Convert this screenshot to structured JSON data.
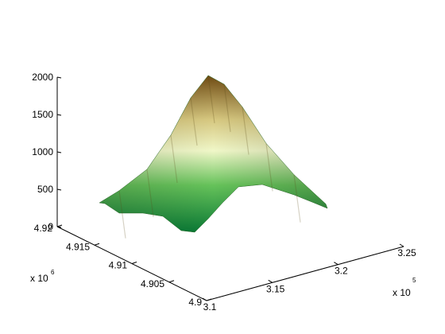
{
  "chart_data": {
    "type": "surface",
    "title": "",
    "xlabel": "",
    "ylabel": "",
    "zlabel": "",
    "x_axis": {
      "range": [
        310000,
        325000
      ],
      "ticks": [
        310000,
        315000,
        320000,
        325000
      ],
      "tick_labels": [
        "3.1",
        "3.15",
        "3.2",
        "3.25"
      ],
      "multiplier_label": "x 10",
      "multiplier_exponent": "5"
    },
    "y_axis": {
      "range": [
        4900000,
        4920000
      ],
      "ticks": [
        4900000,
        4905000,
        4910000,
        4915000,
        4920000
      ],
      "tick_labels": [
        "4.9",
        "4.905",
        "4.91",
        "4.915",
        "4.92"
      ],
      "multiplier_label": "x 10",
      "multiplier_exponent": "6"
    },
    "z_axis": {
      "range": [
        0,
        2000
      ],
      "ticks": [
        0,
        500,
        1000,
        1500,
        2000
      ],
      "tick_labels": [
        "0",
        "500",
        "1000",
        "1500",
        "2000"
      ]
    },
    "grid": false,
    "colormap": [
      "#0a7a35",
      "#66c25a",
      "#f0f7c8",
      "#d6c77f",
      "#6e4a12"
    ],
    "surface_profile": [
      {
        "x": 311000,
        "z_top": 500
      },
      {
        "x": 313000,
        "z_top": 620
      },
      {
        "x": 315000,
        "z_top": 820
      },
      {
        "x": 316500,
        "z_top": 1150
      },
      {
        "x": 317500,
        "z_top": 1500
      },
      {
        "x": 318500,
        "z_top": 1650
      },
      {
        "x": 319500,
        "z_top": 1480
      },
      {
        "x": 320500,
        "z_top": 1250
      },
      {
        "x": 321500,
        "z_top": 900
      },
      {
        "x": 322500,
        "z_top": 620
      },
      {
        "x": 323500,
        "z_top": 420
      }
    ]
  }
}
